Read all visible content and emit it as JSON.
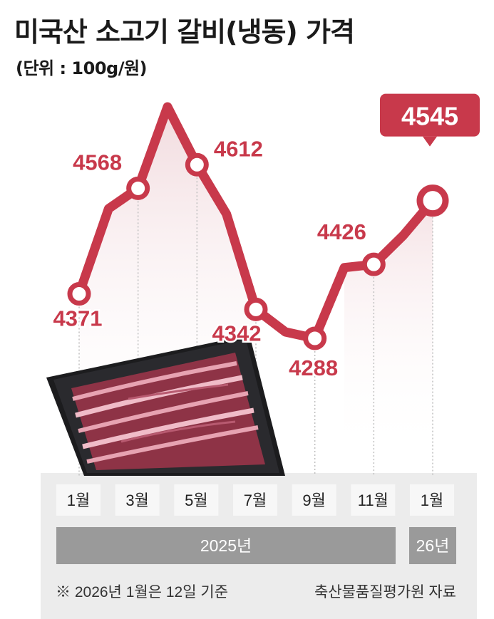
{
  "title": "미국산 소고기 갈비(냉동) 가격",
  "unit": "(단위 : 100g/원)",
  "colors": {
    "line": "#c8394b",
    "label": "#c8394b",
    "badge_bg": "#c8394b",
    "month_box": "#f7f7f7",
    "year_box": "#9a9a9a",
    "panel": "#ececec"
  },
  "chart_data": {
    "type": "line",
    "x": [
      "2025-01",
      "2025-02",
      "2025-03",
      "2025-04",
      "2025-05",
      "2025-06",
      "2025-07",
      "2025-08",
      "2025-09",
      "2025-10",
      "2025-11",
      "2025-12",
      "2026-01"
    ],
    "series": [
      {
        "values": [
          4371,
          4530,
          4568,
          4720,
          4612,
          4520,
          4342,
          4300,
          4288,
          4420,
          4426,
          4480,
          4545
        ]
      }
    ],
    "labeled_points": [
      {
        "x": "2025-01",
        "label": "4371"
      },
      {
        "x": "2025-03",
        "label": "4568"
      },
      {
        "x": "2025-05",
        "label": "4612"
      },
      {
        "x": "2025-07",
        "label": "4342"
      },
      {
        "x": "2025-09",
        "label": "4288"
      },
      {
        "x": "2025-11",
        "label": "4426"
      },
      {
        "x": "2026-01",
        "label": "4545",
        "highlight": true
      }
    ],
    "x_ticks": [
      "1월",
      "3월",
      "5월",
      "7월",
      "9월",
      "11월",
      "1월"
    ],
    "years": [
      "2025년",
      "26년"
    ],
    "grid": false
  },
  "footnote": "※ 2026년 1월은 12일 기준",
  "source": "축산물품질평가원 자료"
}
